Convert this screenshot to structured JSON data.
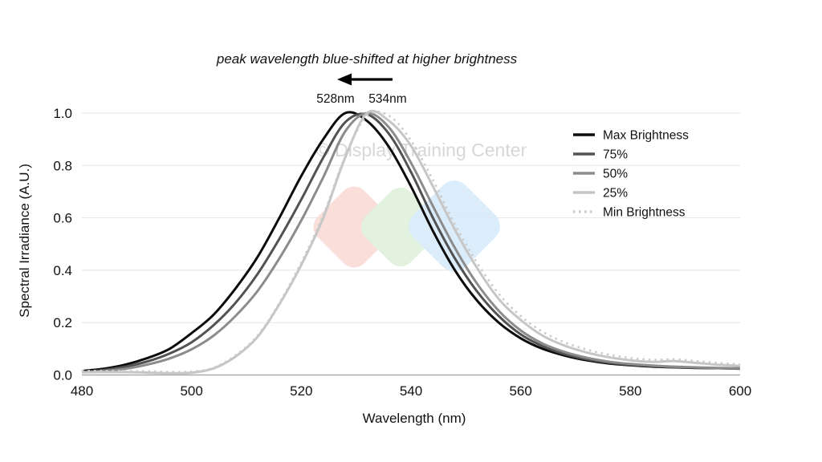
{
  "figure": {
    "background": "#ffffff"
  },
  "watermark": {
    "text": "© Display Training Center",
    "text_color": "#d3d3d3",
    "diamonds": [
      {
        "name": "red",
        "color": "#f9dbd7"
      },
      {
        "name": "green",
        "color": "#e0f1dc"
      },
      {
        "name": "blue",
        "color": "#d8eafb"
      }
    ]
  },
  "annotation": {
    "text": "peak wavelength blue-shifted at higher brightness",
    "peak_label_left": "528nm",
    "peak_label_right": "534nm"
  },
  "chart_data": {
    "type": "line",
    "title": "",
    "xlabel": "Wavelength (nm)",
    "ylabel": "Spectral Irradiance (A.U.)",
    "xlim": [
      480,
      600
    ],
    "ylim": [
      0.0,
      1.0
    ],
    "xticks": [
      480,
      500,
      520,
      540,
      560,
      580,
      600
    ],
    "yticks": [
      0.0,
      0.2,
      0.4,
      0.6,
      0.8,
      1.0
    ],
    "grid": "horizontal-only",
    "legend_position": "upper-right",
    "x": [
      480,
      484,
      488,
      492,
      496,
      500,
      504,
      508,
      512,
      516,
      520,
      524,
      528,
      532,
      536,
      540,
      544,
      548,
      552,
      556,
      560,
      564,
      568,
      572,
      576,
      580,
      584,
      588,
      592,
      596,
      600
    ],
    "series": [
      {
        "name": "Max Brightness",
        "peak_nm": 528,
        "color": "#0c0c0c",
        "style": "solid",
        "values": [
          0.015,
          0.024,
          0.04,
          0.065,
          0.1,
          0.16,
          0.23,
          0.33,
          0.45,
          0.6,
          0.76,
          0.9,
          1.0,
          0.97,
          0.87,
          0.72,
          0.55,
          0.4,
          0.285,
          0.2,
          0.14,
          0.1,
          0.074,
          0.056,
          0.044,
          0.037,
          0.032,
          0.029,
          0.027,
          0.026,
          0.025
        ]
      },
      {
        "name": "75%",
        "peak_nm": 530,
        "color": "#525252",
        "style": "solid",
        "values": [
          0.012,
          0.019,
          0.032,
          0.052,
          0.082,
          0.125,
          0.19,
          0.275,
          0.385,
          0.52,
          0.67,
          0.83,
          0.965,
          0.995,
          0.92,
          0.775,
          0.6,
          0.445,
          0.32,
          0.225,
          0.155,
          0.11,
          0.08,
          0.06,
          0.047,
          0.039,
          0.034,
          0.03,
          0.028,
          0.026,
          0.024
        ]
      },
      {
        "name": "50%",
        "peak_nm": 531,
        "color": "#8c8c8c",
        "style": "solid",
        "values": [
          0.01,
          0.015,
          0.024,
          0.04,
          0.063,
          0.098,
          0.15,
          0.225,
          0.32,
          0.445,
          0.59,
          0.755,
          0.93,
          1.0,
          0.945,
          0.81,
          0.645,
          0.485,
          0.35,
          0.245,
          0.17,
          0.12,
          0.088,
          0.066,
          0.051,
          0.042,
          0.036,
          0.032,
          0.029,
          0.027,
          0.025
        ]
      },
      {
        "name": "25%",
        "peak_nm": 533,
        "color": "#c6c6c6",
        "style": "solid",
        "values": [
          0.01,
          0.011,
          0.011,
          0.009,
          0.007,
          0.009,
          0.025,
          0.07,
          0.145,
          0.27,
          0.42,
          0.6,
          0.83,
          1.0,
          0.97,
          0.875,
          0.72,
          0.555,
          0.41,
          0.29,
          0.21,
          0.15,
          0.112,
          0.086,
          0.068,
          0.056,
          0.05,
          0.053,
          0.046,
          0.039,
          0.035
        ]
      },
      {
        "name": "Min Brightness",
        "peak_nm": 534,
        "color": "#cbcbcb",
        "style": "dotted",
        "values": [
          0.016,
          0.016,
          0.015,
          0.014,
          0.012,
          0.013,
          0.028,
          0.075,
          0.15,
          0.275,
          0.43,
          0.61,
          0.835,
          0.99,
          0.99,
          0.895,
          0.745,
          0.575,
          0.43,
          0.31,
          0.225,
          0.165,
          0.125,
          0.097,
          0.078,
          0.065,
          0.058,
          0.06,
          0.053,
          0.046,
          0.04
        ]
      }
    ]
  }
}
